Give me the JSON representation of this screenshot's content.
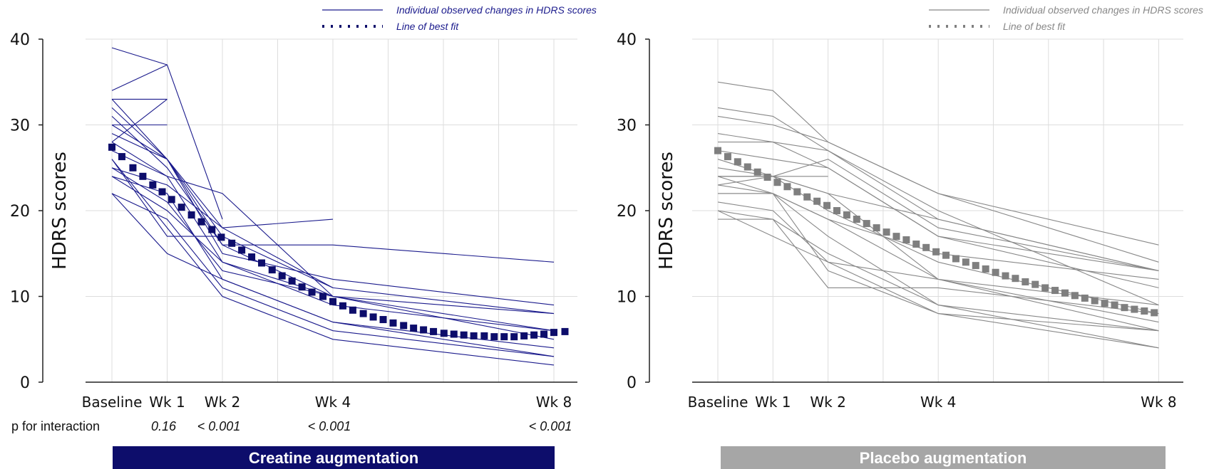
{
  "p_row_label": "p for interaction",
  "chart_data": [
    {
      "type": "line",
      "panel_title": "Creatine augmentation",
      "ylabel": "HDRS scores",
      "ylim": [
        0,
        40
      ],
      "yticks": [
        {
          "value": 0,
          "label": "0"
        },
        {
          "value": 10,
          "label": "10"
        },
        {
          "value": 20,
          "label": "20"
        },
        {
          "value": 30,
          "label": "30"
        },
        {
          "value": 40,
          "label": "40"
        }
      ],
      "xlim": [
        0,
        8.5
      ],
      "grid": true,
      "xticks": [
        {
          "value": 0,
          "label": "Baseline"
        },
        {
          "value": 1,
          "label": "Wk 1"
        },
        {
          "value": 2,
          "label": "Wk 2"
        },
        {
          "value": 4,
          "label": "Wk 4"
        },
        {
          "value": 8,
          "label": "Wk 8"
        }
      ],
      "legend": {
        "position": "top",
        "individual": "Individual observed changes in HDRS scores",
        "fit": "Line of best fit"
      },
      "colors": {
        "individual": "#1a1a8c",
        "fit": "#0d0d6b",
        "panel": "#0d0d6b",
        "grid": "#dddddd"
      },
      "p_values": [
        {
          "x": 1,
          "label": "0.16"
        },
        {
          "x": 2,
          "label": "< 0.001"
        },
        {
          "x": 4,
          "label": "< 0.001"
        },
        {
          "x": 8,
          "label": "< 0.001"
        }
      ],
      "individual_series": [
        {
          "x": [
            0,
            1
          ],
          "y": [
            39,
            37
          ]
        },
        {
          "x": [
            0,
            1
          ],
          "y": [
            33,
            33
          ]
        },
        {
          "x": [
            0,
            1
          ],
          "y": [
            28,
            33
          ]
        },
        {
          "x": [
            0,
            1
          ],
          "y": [
            30,
            30
          ]
        },
        {
          "x": [
            0,
            1,
            2
          ],
          "y": [
            34,
            37,
            19
          ]
        },
        {
          "x": [
            0,
            1,
            2,
            4
          ],
          "y": [
            32,
            26,
            17,
            11
          ]
        },
        {
          "x": [
            0,
            1,
            2,
            4
          ],
          "y": [
            30,
            26,
            18,
            19
          ]
        },
        {
          "x": [
            0,
            1,
            2,
            4
          ],
          "y": [
            31,
            25,
            16,
            10
          ]
        },
        {
          "x": [
            0,
            1,
            2,
            4,
            8
          ],
          "y": [
            33,
            26,
            16,
            16,
            14
          ]
        },
        {
          "x": [
            0,
            1,
            2,
            4,
            8
          ],
          "y": [
            29,
            26,
            15,
            12,
            9
          ]
        },
        {
          "x": [
            0,
            1,
            2,
            4,
            8
          ],
          "y": [
            28,
            24,
            22,
            10,
            8
          ]
        },
        {
          "x": [
            0,
            1,
            2,
            4,
            8
          ],
          "y": [
            27,
            24,
            14,
            10,
            6
          ]
        },
        {
          "x": [
            0,
            1,
            2,
            4,
            8
          ],
          "y": [
            25,
            23,
            18,
            11,
            8
          ]
        },
        {
          "x": [
            0,
            1,
            2,
            4,
            8
          ],
          "y": [
            25,
            21,
            13,
            10,
            5
          ]
        },
        {
          "x": [
            0,
            1,
            2,
            4,
            8
          ],
          "y": [
            24,
            20,
            14,
            9,
            6
          ]
        },
        {
          "x": [
            0,
            1,
            2,
            4,
            8
          ],
          "y": [
            24,
            22,
            12,
            7,
            4
          ]
        },
        {
          "x": [
            0,
            1,
            2,
            4,
            8
          ],
          "y": [
            22,
            19,
            11,
            6,
            3
          ]
        },
        {
          "x": [
            0,
            1,
            2,
            4,
            8
          ],
          "y": [
            22,
            15,
            12,
            7,
            3
          ]
        },
        {
          "x": [
            0,
            1,
            2,
            4,
            8
          ],
          "y": [
            26,
            18,
            10,
            5,
            2
          ]
        },
        {
          "x": [
            0,
            1,
            2
          ],
          "y": [
            26,
            17,
            17
          ]
        }
      ],
      "fit_points": [
        {
          "x": 0,
          "y": 27.4
        },
        {
          "x": 0.18,
          "y": 26.3
        },
        {
          "x": 0.38,
          "y": 25.0
        },
        {
          "x": 0.56,
          "y": 24.0
        },
        {
          "x": 0.74,
          "y": 23.0
        },
        {
          "x": 0.91,
          "y": 22.2
        },
        {
          "x": 1.08,
          "y": 21.3
        },
        {
          "x": 1.26,
          "y": 20.4
        },
        {
          "x": 1.44,
          "y": 19.5
        },
        {
          "x": 1.62,
          "y": 18.7
        },
        {
          "x": 1.81,
          "y": 17.8
        },
        {
          "x": 1.98,
          "y": 16.9
        },
        {
          "x": 2.17,
          "y": 16.2
        },
        {
          "x": 2.35,
          "y": 15.4
        },
        {
          "x": 2.53,
          "y": 14.6
        },
        {
          "x": 2.71,
          "y": 13.9
        },
        {
          "x": 2.9,
          "y": 13.1
        },
        {
          "x": 3.08,
          "y": 12.4
        },
        {
          "x": 3.26,
          "y": 11.8
        },
        {
          "x": 3.44,
          "y": 11.1
        },
        {
          "x": 3.62,
          "y": 10.5
        },
        {
          "x": 3.82,
          "y": 10.0
        },
        {
          "x": 4.0,
          "y": 9.4
        },
        {
          "x": 4.18,
          "y": 8.9
        },
        {
          "x": 4.36,
          "y": 8.4
        },
        {
          "x": 4.55,
          "y": 8.0
        },
        {
          "x": 4.73,
          "y": 7.6
        },
        {
          "x": 4.91,
          "y": 7.3
        },
        {
          "x": 5.09,
          "y": 6.9
        },
        {
          "x": 5.28,
          "y": 6.6
        },
        {
          "x": 5.46,
          "y": 6.3
        },
        {
          "x": 5.64,
          "y": 6.1
        },
        {
          "x": 5.82,
          "y": 5.9
        },
        {
          "x": 6.01,
          "y": 5.7
        },
        {
          "x": 6.19,
          "y": 5.6
        },
        {
          "x": 6.37,
          "y": 5.5
        },
        {
          "x": 6.55,
          "y": 5.4
        },
        {
          "x": 6.74,
          "y": 5.4
        },
        {
          "x": 6.92,
          "y": 5.3
        },
        {
          "x": 7.1,
          "y": 5.3
        },
        {
          "x": 7.28,
          "y": 5.3
        },
        {
          "x": 7.46,
          "y": 5.4
        },
        {
          "x": 7.64,
          "y": 5.5
        },
        {
          "x": 7.82,
          "y": 5.6
        },
        {
          "x": 8.0,
          "y": 5.8
        },
        {
          "x": 8.2,
          "y": 5.9
        }
      ]
    },
    {
      "type": "line",
      "panel_title": "Placebo augmentation",
      "ylabel": "HDRS scores",
      "ylim": [
        0,
        40
      ],
      "yticks": [
        {
          "value": 0,
          "label": "0"
        },
        {
          "value": 10,
          "label": "10"
        },
        {
          "value": 20,
          "label": "20"
        },
        {
          "value": 30,
          "label": "30"
        },
        {
          "value": 40,
          "label": "40"
        }
      ],
      "xlim": [
        0,
        8.5
      ],
      "grid": true,
      "xticks": [
        {
          "value": 0,
          "label": "Baseline"
        },
        {
          "value": 1,
          "label": "Wk 1"
        },
        {
          "value": 2,
          "label": "Wk 2"
        },
        {
          "value": 4,
          "label": "Wk 4"
        },
        {
          "value": 8,
          "label": "Wk 8"
        }
      ],
      "legend": {
        "position": "top",
        "individual": "Individual observed changes in HDRS scores",
        "fit": "Line of best fit"
      },
      "colors": {
        "individual": "#888888",
        "fit": "#7f7f7f",
        "panel": "#a6a6a6",
        "grid": "#dddddd"
      },
      "p_values": [],
      "individual_series": [
        {
          "x": [
            0,
            1,
            2,
            4,
            8
          ],
          "y": [
            35,
            34,
            28,
            22,
            16
          ]
        },
        {
          "x": [
            0,
            1,
            2,
            4,
            8
          ],
          "y": [
            32,
            31,
            27,
            19,
            13
          ]
        },
        {
          "x": [
            0,
            1,
            2,
            4,
            8
          ],
          "y": [
            31,
            30,
            28,
            22,
            14
          ]
        },
        {
          "x": [
            0,
            1,
            2,
            4,
            8
          ],
          "y": [
            29,
            28,
            27,
            20,
            9
          ]
        },
        {
          "x": [
            0,
            1,
            2,
            4,
            8
          ],
          "y": [
            28,
            28,
            25,
            17,
            13
          ]
        },
        {
          "x": [
            0,
            1,
            2,
            4,
            8
          ],
          "y": [
            27,
            26,
            25,
            17,
            11
          ]
        },
        {
          "x": [
            0,
            1,
            2,
            4,
            8
          ],
          "y": [
            26,
            24,
            22,
            12,
            9
          ]
        },
        {
          "x": [
            0,
            1,
            2,
            4,
            8
          ],
          "y": [
            25,
            24,
            20,
            14,
            8
          ]
        },
        {
          "x": [
            0,
            1,
            2,
            4,
            8
          ],
          "y": [
            24,
            22,
            19,
            15,
            12
          ]
        },
        {
          "x": [
            0,
            1,
            2,
            4,
            8
          ],
          "y": [
            23,
            22,
            19,
            12,
            6
          ]
        },
        {
          "x": [
            0,
            1,
            2,
            4,
            8
          ],
          "y": [
            22,
            22,
            17,
            9,
            4
          ]
        },
        {
          "x": [
            0,
            1,
            2,
            4,
            8
          ],
          "y": [
            21,
            20,
            14,
            12,
            7
          ]
        },
        {
          "x": [
            0,
            1,
            2,
            4,
            8
          ],
          "y": [
            20,
            17,
            14,
            8,
            6
          ]
        },
        {
          "x": [
            0,
            1,
            2,
            4,
            8
          ],
          "y": [
            20,
            19,
            11,
            11,
            8
          ]
        },
        {
          "x": [
            0,
            1,
            2,
            4,
            8
          ],
          "y": [
            19,
            19,
            15,
            9,
            6
          ]
        },
        {
          "x": [
            0,
            1,
            2,
            4,
            8
          ],
          "y": [
            24,
            24,
            22,
            19,
            13
          ]
        },
        {
          "x": [
            0,
            1,
            2,
            4,
            8
          ],
          "y": [
            23,
            24,
            26,
            18,
            13
          ]
        },
        {
          "x": [
            0,
            1,
            2
          ],
          "y": [
            24,
            24,
            24
          ]
        },
        {
          "x": [
            0,
            1,
            2,
            4,
            8
          ],
          "y": [
            22,
            22,
            13,
            8,
            4
          ]
        }
      ],
      "fit_points": [
        {
          "x": 0,
          "y": 27.0
        },
        {
          "x": 0.18,
          "y": 26.3
        },
        {
          "x": 0.36,
          "y": 25.7
        },
        {
          "x": 0.54,
          "y": 25.1
        },
        {
          "x": 0.72,
          "y": 24.5
        },
        {
          "x": 0.9,
          "y": 23.9
        },
        {
          "x": 1.08,
          "y": 23.3
        },
        {
          "x": 1.26,
          "y": 22.8
        },
        {
          "x": 1.44,
          "y": 22.2
        },
        {
          "x": 1.62,
          "y": 21.6
        },
        {
          "x": 1.8,
          "y": 21.1
        },
        {
          "x": 1.98,
          "y": 20.6
        },
        {
          "x": 2.16,
          "y": 20.0
        },
        {
          "x": 2.34,
          "y": 19.5
        },
        {
          "x": 2.52,
          "y": 19.0
        },
        {
          "x": 2.7,
          "y": 18.5
        },
        {
          "x": 2.88,
          "y": 18.0
        },
        {
          "x": 3.06,
          "y": 17.5
        },
        {
          "x": 3.24,
          "y": 17.0
        },
        {
          "x": 3.42,
          "y": 16.6
        },
        {
          "x": 3.6,
          "y": 16.1
        },
        {
          "x": 3.78,
          "y": 15.7
        },
        {
          "x": 3.96,
          "y": 15.2
        },
        {
          "x": 4.14,
          "y": 14.8
        },
        {
          "x": 4.32,
          "y": 14.4
        },
        {
          "x": 4.5,
          "y": 14.0
        },
        {
          "x": 4.68,
          "y": 13.6
        },
        {
          "x": 4.86,
          "y": 13.2
        },
        {
          "x": 5.04,
          "y": 12.8
        },
        {
          "x": 5.22,
          "y": 12.4
        },
        {
          "x": 5.4,
          "y": 12.1
        },
        {
          "x": 5.58,
          "y": 11.7
        },
        {
          "x": 5.76,
          "y": 11.4
        },
        {
          "x": 5.94,
          "y": 11.0
        },
        {
          "x": 6.12,
          "y": 10.7
        },
        {
          "x": 6.3,
          "y": 10.4
        },
        {
          "x": 6.48,
          "y": 10.1
        },
        {
          "x": 6.66,
          "y": 9.8
        },
        {
          "x": 6.84,
          "y": 9.5
        },
        {
          "x": 7.02,
          "y": 9.2
        },
        {
          "x": 7.2,
          "y": 9.0
        },
        {
          "x": 7.38,
          "y": 8.7
        },
        {
          "x": 7.56,
          "y": 8.5
        },
        {
          "x": 7.74,
          "y": 8.3
        },
        {
          "x": 7.92,
          "y": 8.1
        }
      ]
    }
  ]
}
